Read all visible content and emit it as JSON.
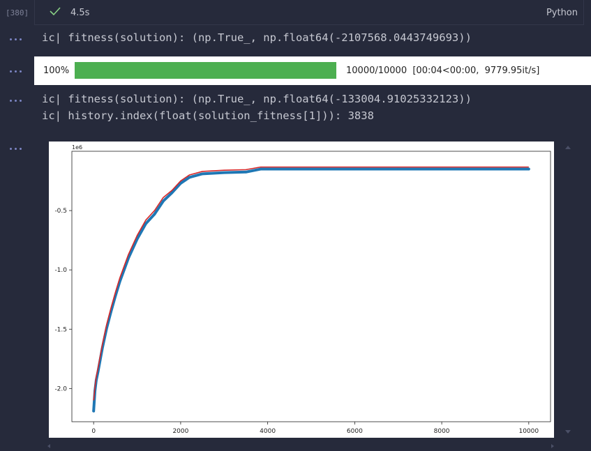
{
  "cell": {
    "execution_count": "[380]",
    "duration": "4.5s",
    "kernel": "Python",
    "status_icon": "check-icon"
  },
  "outputs": {
    "line1": "ic| fitness(solution): (np.True_, np.float64(-2107568.0443749693))",
    "progress": {
      "percent_label": "100%",
      "stats": "10000/10000  [00:04<00:00,  9779.95it/s]",
      "fraction": 1.0,
      "bar_color": "#4caf50"
    },
    "line2": "ic| fitness(solution): (np.True_, np.float64(-133004.91025332123))",
    "line3": "ic| history.index(float(solution_fitness[1])): 3838"
  },
  "chart_data": {
    "type": "scatter",
    "title": "",
    "xlabel": "",
    "ylabel": "",
    "y_scale_label": "1e6",
    "xlim": [
      -500,
      10500
    ],
    "ylim": [
      -2.28,
      -0.0
    ],
    "xticks": [
      0,
      2000,
      4000,
      6000,
      8000,
      10000
    ],
    "xtick_labels": [
      "0",
      "2000",
      "4000",
      "6000",
      "8000",
      "10000"
    ],
    "yticks": [
      -0.5,
      -1.0,
      -1.5,
      -2.0
    ],
    "ytick_labels": [
      "-0.5",
      "-1.0",
      "-1.5",
      "-2.0"
    ],
    "grid": false,
    "series": [
      {
        "color": "#1f77b4",
        "marker": "point",
        "x": [
          0,
          30,
          60,
          100,
          150,
          200,
          300,
          400,
          500,
          600,
          700,
          800,
          1000,
          1200,
          1400,
          1600,
          1800,
          2000,
          2200,
          2500,
          3000,
          3500,
          3838,
          4000,
          5000,
          6000,
          7000,
          8000,
          9000,
          10000
        ],
        "y": [
          -2.19,
          -2.02,
          -1.93,
          -1.86,
          -1.76,
          -1.66,
          -1.49,
          -1.35,
          -1.22,
          -1.1,
          -1.0,
          -0.9,
          -0.74,
          -0.61,
          -0.53,
          -0.42,
          -0.35,
          -0.27,
          -0.22,
          -0.19,
          -0.18,
          -0.175,
          -0.15,
          -0.15,
          -0.15,
          -0.15,
          -0.15,
          -0.15,
          -0.15,
          -0.15
        ]
      },
      {
        "color": "#d62728",
        "marker": "line",
        "x": [
          0,
          30,
          60,
          100,
          150,
          200,
          300,
          400,
          500,
          600,
          700,
          800,
          1000,
          1200,
          1400,
          1600,
          1800,
          2000,
          2200,
          2500,
          3000,
          3500,
          3838,
          4000,
          5000,
          6000,
          7000,
          8000,
          9000,
          10000
        ],
        "y": [
          -2.1,
          -1.99,
          -1.9,
          -1.83,
          -1.73,
          -1.63,
          -1.46,
          -1.32,
          -1.19,
          -1.07,
          -0.97,
          -0.87,
          -0.71,
          -0.58,
          -0.5,
          -0.39,
          -0.33,
          -0.25,
          -0.2,
          -0.17,
          -0.16,
          -0.155,
          -0.133,
          -0.133,
          -0.133,
          -0.133,
          -0.133,
          -0.133,
          -0.133,
          -0.133
        ]
      }
    ]
  }
}
